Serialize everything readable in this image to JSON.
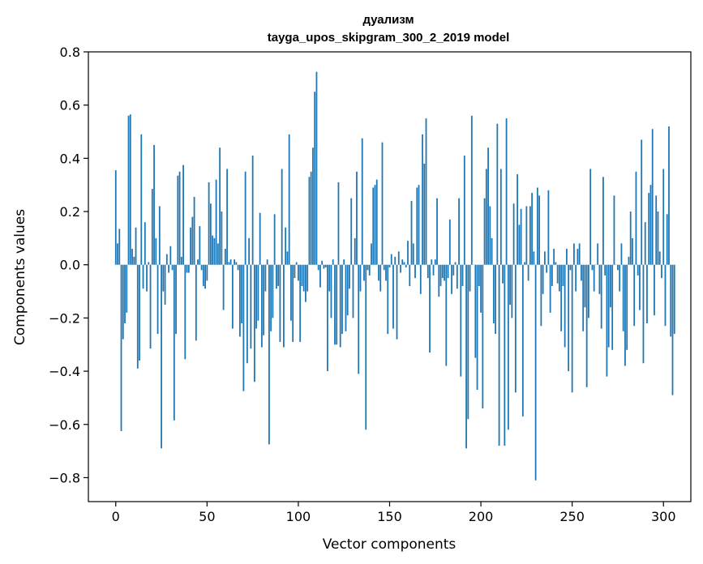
{
  "chart_data": {
    "type": "bar",
    "title": "дуализм",
    "subtitle": "tayga_upos_skipgram_300_2_2019 model",
    "xlabel": "Vector components",
    "ylabel": "Components values",
    "xlim": [
      -15,
      315
    ],
    "ylim": [
      -0.89,
      0.8
    ],
    "xticks": [
      0,
      50,
      100,
      150,
      200,
      250,
      300
    ],
    "xtick_labels": [
      "0",
      "50",
      "100",
      "150",
      "200",
      "250",
      "300"
    ],
    "yticks": [
      -0.8,
      -0.6,
      -0.4,
      -0.2,
      0.0,
      0.2,
      0.4,
      0.6,
      0.8
    ],
    "ytick_labels": [
      "−0.8",
      "−0.6",
      "−0.4",
      "−0.2",
      "0.0",
      "0.2",
      "0.4",
      "0.6",
      "0.8"
    ],
    "grid": false,
    "bar_color": "#1f77b4",
    "series": [
      {
        "values": [
          0.355,
          0.08,
          0.135,
          -0.625,
          -0.28,
          -0.22,
          -0.18,
          0.56,
          0.565,
          0.06,
          0.03,
          0.14,
          -0.39,
          -0.36,
          0.49,
          -0.09,
          0.16,
          -0.1,
          0.01,
          -0.315,
          0.285,
          0.45,
          0.1,
          -0.26,
          0.22,
          -0.69,
          -0.1,
          -0.15,
          0.04,
          -0.03,
          0.07,
          -0.02,
          -0.585,
          -0.26,
          0.335,
          0.35,
          0.03,
          0.375,
          -0.355,
          -0.03,
          -0.03,
          0.14,
          0.18,
          0.255,
          -0.285,
          0.02,
          0.145,
          -0.02,
          -0.08,
          -0.09,
          -0.06,
          0.31,
          0.23,
          0.11,
          0.1,
          0.32,
          0.08,
          0.44,
          0.2,
          -0.17,
          0.06,
          0.36,
          0.01,
          0.02,
          -0.24,
          0.02,
          0.01,
          -0.02,
          -0.27,
          -0.22,
          -0.475,
          0.35,
          -0.37,
          0.1,
          -0.315,
          0.41,
          -0.44,
          -0.24,
          -0.21,
          0.195,
          -0.31,
          -0.265,
          -0.1,
          0.02,
          -0.675,
          -0.25,
          -0.2,
          0.19,
          -0.09,
          -0.08,
          -0.29,
          0.36,
          -0.31,
          0.14,
          0.05,
          0.49,
          -0.21,
          -0.29,
          -0.05,
          0.01,
          -0.06,
          -0.29,
          -0.08,
          -0.1,
          -0.14,
          -0.1,
          0.33,
          0.35,
          0.44,
          0.65,
          0.725,
          -0.02,
          -0.085,
          0.015,
          -0.015,
          -0.01,
          -0.4,
          -0.1,
          -0.2,
          0.02,
          -0.3,
          -0.3,
          0.31,
          -0.31,
          -0.26,
          0.02,
          -0.25,
          -0.19,
          -0.09,
          0.25,
          -0.2,
          0.1,
          0.35,
          -0.41,
          -0.1,
          0.475,
          -0.06,
          -0.62,
          -0.02,
          -0.04,
          0.08,
          0.29,
          0.3,
          0.32,
          -0.06,
          -0.1,
          0.46,
          -0.02,
          -0.06,
          -0.26,
          -0.01,
          0.04,
          -0.24,
          0.03,
          -0.28,
          0.05,
          -0.03,
          0.02,
          0.01,
          -0.01,
          0.09,
          -0.08,
          0.24,
          0.08,
          -0.05,
          0.29,
          0.3,
          -0.11,
          0.49,
          0.38,
          0.55,
          -0.05,
          -0.33,
          0.02,
          -0.04,
          0.02,
          0.25,
          -0.12,
          -0.08,
          -0.05,
          -0.06,
          -0.38,
          -0.05,
          0.17,
          -0.11,
          -0.04,
          0.01,
          -0.09,
          0.25,
          -0.42,
          -0.08,
          0.41,
          -0.69,
          -0.58,
          -0.1,
          0.56,
          0.0,
          -0.35,
          -0.47,
          -0.08,
          -0.18,
          -0.54,
          0.25,
          0.36,
          0.44,
          0.22,
          0.1,
          -0.22,
          -0.26,
          0.53,
          -0.68,
          0.36,
          -0.07,
          -0.68,
          0.55,
          -0.62,
          -0.15,
          -0.2,
          0.23,
          -0.48,
          0.34,
          0.15,
          0.21,
          -0.57,
          0.01,
          0.22,
          -0.06,
          0.22,
          0.27,
          0.05,
          -0.81,
          0.29,
          0.26,
          -0.23,
          -0.11,
          0.05,
          -0.03,
          0.28,
          -0.18,
          -0.08,
          0.06,
          0.01,
          -0.07,
          -0.1,
          -0.25,
          -0.08,
          -0.31,
          0.06,
          -0.4,
          -0.02,
          -0.48,
          0.08,
          -0.1,
          0.06,
          0.08,
          -0.06,
          -0.25,
          -0.16,
          -0.46,
          -0.2,
          0.36,
          -0.02,
          -0.1,
          0.0,
          0.08,
          -0.11,
          -0.24,
          0.33,
          -0.04,
          -0.42,
          -0.31,
          -0.16,
          -0.32,
          0.26,
          0.0,
          -0.02,
          -0.1,
          0.08,
          -0.25,
          -0.38,
          -0.32,
          0.03,
          0.2,
          0.1,
          -0.23,
          0.35,
          -0.04,
          -0.17,
          0.47,
          -0.37,
          0.16,
          -0.22,
          0.27,
          0.3,
          0.51,
          -0.19,
          0.26,
          0.2,
          0.05,
          -0.05,
          0.36,
          -0.23,
          0.19,
          0.52,
          -0.27,
          -0.49,
          -0.26
        ]
      }
    ]
  }
}
